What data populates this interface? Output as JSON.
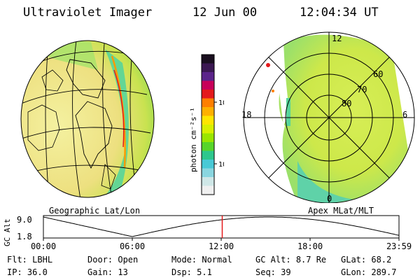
{
  "header": {
    "instrument": "Ultraviolet Imager",
    "date": "12 Jun 00",
    "time": "12:04:34 UT"
  },
  "panels": {
    "left_label": "Geographic Lat/Lon",
    "right_label": "Apex MLat/MLT"
  },
  "colorbar": {
    "unit_label": "photon cm⁻²s⁻¹",
    "ticks": [
      "100",
      "10"
    ],
    "colors": [
      "#1a0f1f",
      "#3b1852",
      "#5b248a",
      "#c8005a",
      "#e41a1c",
      "#ff7f00",
      "#ffb000",
      "#ffe600",
      "#d8f000",
      "#9ae600",
      "#57d52a",
      "#2ec78d",
      "#49c9d6",
      "#8ad6e0",
      "#cfe7e7",
      "#f0f0f0"
    ]
  },
  "polar": {
    "mlt_labels": {
      "top": "12",
      "left": "18",
      "right": "6",
      "bottom": "0"
    },
    "mlat_labels": [
      "60",
      "70",
      "80"
    ]
  },
  "altitude_plot": {
    "ylabel": "GC Alt",
    "yticks": [
      "9.0",
      "1.8"
    ],
    "xticks": [
      "00:00",
      "06:00",
      "12:00",
      "18:00",
      "23:59"
    ],
    "current_time_hours": 12.07
  },
  "footer": {
    "row1": [
      {
        "label": "Flt:",
        "value": "LBHL"
      },
      {
        "label": "Door:",
        "value": "Open"
      },
      {
        "label": "Mode:",
        "value": "Normal"
      },
      {
        "label": "GC Alt:",
        "value": "8.7 Re"
      },
      {
        "label": "GLat:",
        "value": "68.2"
      }
    ],
    "row2": [
      {
        "label": "IP:",
        "value": "36.0"
      },
      {
        "label": "Gain:",
        "value": "13"
      },
      {
        "label": "Dsp:",
        "value": "5.1"
      },
      {
        "label": "Seq:",
        "value": "39"
      },
      {
        "label": "GLon:",
        "value": "289.7"
      }
    ]
  }
}
